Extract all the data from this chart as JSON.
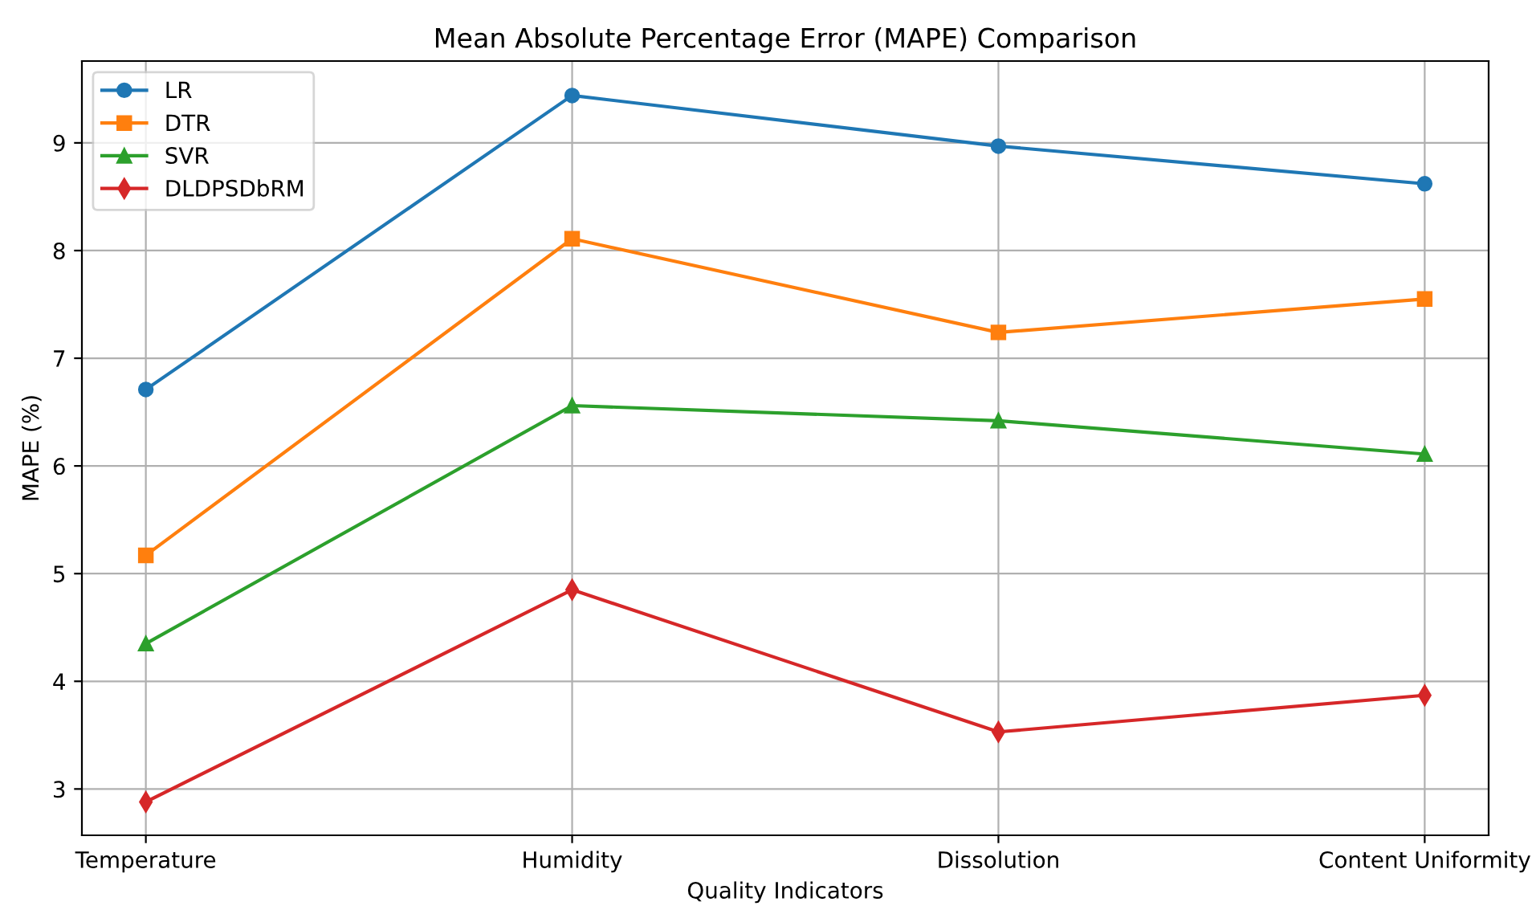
{
  "chart_data": {
    "type": "line",
    "title": "Mean Absolute Percentage Error (MAPE) Comparison",
    "xlabel": "Quality Indicators",
    "ylabel": "MAPE (%)",
    "categories": [
      "Temperature",
      "Humidity",
      "Dissolution",
      "Content Uniformity"
    ],
    "series": [
      {
        "name": "LR",
        "color": "#1f77b4",
        "marker": "circle",
        "values": [
          6.71,
          9.44,
          8.97,
          8.62
        ]
      },
      {
        "name": "DTR",
        "color": "#ff7f0e",
        "marker": "square",
        "values": [
          5.17,
          8.11,
          7.24,
          7.55
        ]
      },
      {
        "name": "SVR",
        "color": "#2ca02c",
        "marker": "triangle",
        "values": [
          4.35,
          6.56,
          6.42,
          6.11
        ]
      },
      {
        "name": "DLDPSDbRM",
        "color": "#d62728",
        "marker": "diamond",
        "values": [
          2.88,
          4.85,
          3.53,
          3.87
        ]
      }
    ],
    "ylim": [
      2.57,
      9.76
    ],
    "yticks": [
      3,
      4,
      5,
      6,
      7,
      8,
      9
    ],
    "grid": true,
    "legend": "top left",
    "line_style": "solid"
  }
}
